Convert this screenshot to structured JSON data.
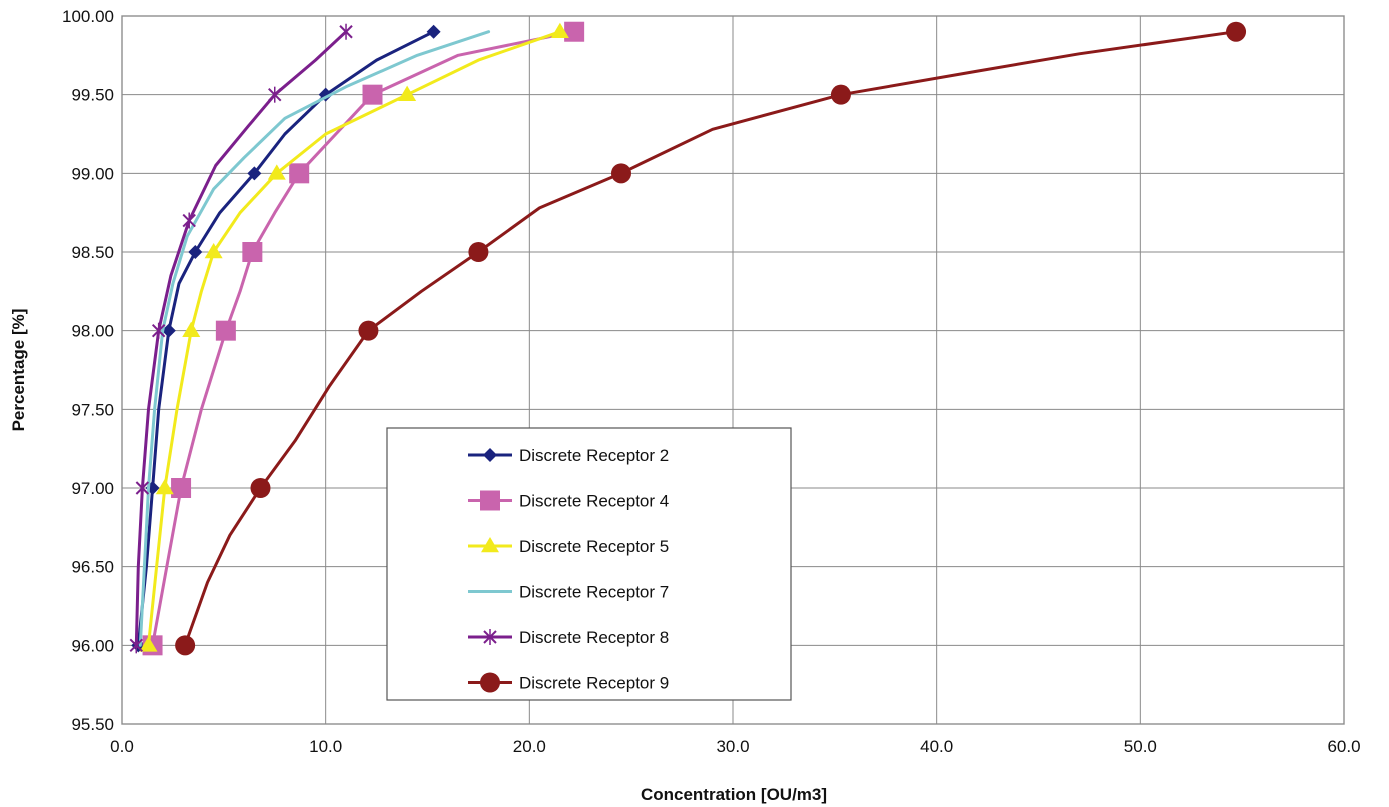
{
  "chart_data": {
    "type": "line",
    "title": "",
    "xlabel": "Concentration [OU/m3]",
    "ylabel": "Percentage [%]",
    "xlim": [
      0,
      60
    ],
    "ylim": [
      95.5,
      100
    ],
    "grid": true,
    "legend_position": "center-left",
    "x_ticks": [
      {
        "value": 0,
        "label": "0.0"
      },
      {
        "value": 10,
        "label": "10.0"
      },
      {
        "value": 20,
        "label": "20.0"
      },
      {
        "value": 30,
        "label": "30.0"
      },
      {
        "value": 40,
        "label": "40.0"
      },
      {
        "value": 50,
        "label": "50.0"
      },
      {
        "value": 60,
        "label": "60.0"
      }
    ],
    "y_ticks": [
      {
        "value": 95.5,
        "label": "95.50"
      },
      {
        "value": 96.0,
        "label": "96.00"
      },
      {
        "value": 96.5,
        "label": "96.50"
      },
      {
        "value": 97.0,
        "label": "97.00"
      },
      {
        "value": 97.5,
        "label": "97.50"
      },
      {
        "value": 98.0,
        "label": "98.00"
      },
      {
        "value": 98.5,
        "label": "98.50"
      },
      {
        "value": 99.0,
        "label": "99.00"
      },
      {
        "value": 99.5,
        "label": "99.50"
      },
      {
        "value": 100.0,
        "label": "100.00"
      }
    ],
    "series": [
      {
        "name": "Discrete Receptor 2",
        "color": "#1a237e",
        "marker": "diamond",
        "points": [
          [
            0.8,
            96.0
          ],
          [
            1.2,
            96.5
          ],
          [
            1.5,
            97.0
          ],
          [
            1.8,
            97.5
          ],
          [
            2.3,
            98.0
          ],
          [
            2.8,
            98.3
          ],
          [
            3.6,
            98.5
          ],
          [
            4.8,
            98.75
          ],
          [
            6.5,
            99.0
          ],
          [
            8.0,
            99.25
          ],
          [
            10.0,
            99.5
          ],
          [
            12.5,
            99.72
          ],
          [
            15.3,
            99.9
          ]
        ],
        "markers": [
          [
            0.8,
            96.0
          ],
          [
            1.5,
            97.0
          ],
          [
            2.3,
            98.0
          ],
          [
            3.6,
            98.5
          ],
          [
            6.5,
            99.0
          ],
          [
            10.0,
            99.5
          ],
          [
            15.3,
            99.9
          ]
        ]
      },
      {
        "name": "Discrete Receptor 4",
        "color": "#c964ad",
        "marker": "square",
        "points": [
          [
            1.5,
            96.0
          ],
          [
            2.2,
            96.5
          ],
          [
            2.9,
            97.0
          ],
          [
            3.9,
            97.5
          ],
          [
            5.1,
            98.0
          ],
          [
            5.8,
            98.25
          ],
          [
            6.4,
            98.5
          ],
          [
            7.5,
            98.75
          ],
          [
            8.7,
            99.0
          ],
          [
            10.5,
            99.25
          ],
          [
            12.3,
            99.5
          ],
          [
            16.5,
            99.75
          ],
          [
            22.2,
            99.9
          ]
        ],
        "markers": [
          [
            1.5,
            96.0
          ],
          [
            2.9,
            97.0
          ],
          [
            5.1,
            98.0
          ],
          [
            6.4,
            98.5
          ],
          [
            8.7,
            99.0
          ],
          [
            12.3,
            99.5
          ],
          [
            22.2,
            99.9
          ]
        ]
      },
      {
        "name": "Discrete Receptor 5",
        "color": "#f2ea1c",
        "marker": "triangle",
        "points": [
          [
            1.3,
            96.0
          ],
          [
            1.7,
            96.5
          ],
          [
            2.1,
            97.0
          ],
          [
            2.7,
            97.5
          ],
          [
            3.4,
            98.0
          ],
          [
            3.9,
            98.25
          ],
          [
            4.5,
            98.5
          ],
          [
            5.8,
            98.75
          ],
          [
            7.6,
            99.0
          ],
          [
            10.0,
            99.25
          ],
          [
            14.0,
            99.5
          ],
          [
            17.5,
            99.72
          ],
          [
            21.5,
            99.9
          ]
        ],
        "markers": [
          [
            1.3,
            96.0
          ],
          [
            2.1,
            97.0
          ],
          [
            3.4,
            98.0
          ],
          [
            4.5,
            98.5
          ],
          [
            7.6,
            99.0
          ],
          [
            14.0,
            99.5
          ],
          [
            21.5,
            99.9
          ]
        ]
      },
      {
        "name": "Discrete Receptor 7",
        "color": "#7ec8d0",
        "marker": "none",
        "points": [
          [
            0.9,
            96.0
          ],
          [
            1.1,
            96.5
          ],
          [
            1.3,
            97.0
          ],
          [
            1.6,
            97.5
          ],
          [
            2.0,
            98.0
          ],
          [
            2.5,
            98.3
          ],
          [
            3.2,
            98.6
          ],
          [
            4.5,
            98.9
          ],
          [
            6.0,
            99.1
          ],
          [
            8.0,
            99.35
          ],
          [
            11.0,
            99.55
          ],
          [
            14.5,
            99.75
          ],
          [
            18.0,
            99.9
          ]
        ],
        "markers": []
      },
      {
        "name": "Discrete Receptor 8",
        "color": "#7b1f8c",
        "marker": "cross",
        "points": [
          [
            0.7,
            96.0
          ],
          [
            0.8,
            96.5
          ],
          [
            1.0,
            97.0
          ],
          [
            1.3,
            97.5
          ],
          [
            1.8,
            98.0
          ],
          [
            2.4,
            98.35
          ],
          [
            3.3,
            98.7
          ],
          [
            4.6,
            99.05
          ],
          [
            6.2,
            99.3
          ],
          [
            7.5,
            99.5
          ],
          [
            9.5,
            99.72
          ],
          [
            11.0,
            99.9
          ]
        ],
        "markers": [
          [
            0.7,
            96.0
          ],
          [
            1.0,
            97.0
          ],
          [
            1.8,
            98.0
          ],
          [
            3.3,
            98.7
          ],
          [
            7.5,
            99.5
          ],
          [
            11.0,
            99.9
          ]
        ]
      },
      {
        "name": "Discrete Receptor 9",
        "color": "#8b1a1a",
        "marker": "circle",
        "points": [
          [
            3.1,
            96.0
          ],
          [
            4.2,
            96.4
          ],
          [
            5.3,
            96.7
          ],
          [
            6.8,
            97.0
          ],
          [
            8.5,
            97.3
          ],
          [
            10.2,
            97.65
          ],
          [
            12.1,
            98.0
          ],
          [
            14.7,
            98.25
          ],
          [
            17.5,
            98.5
          ],
          [
            20.5,
            98.78
          ],
          [
            24.5,
            99.0
          ],
          [
            29.0,
            99.28
          ],
          [
            35.3,
            99.5
          ],
          [
            42.0,
            99.65
          ],
          [
            47.0,
            99.76
          ],
          [
            54.7,
            99.9
          ]
        ],
        "markers": [
          [
            3.1,
            96.0
          ],
          [
            6.8,
            97.0
          ],
          [
            12.1,
            98.0
          ],
          [
            17.5,
            98.5
          ],
          [
            24.5,
            99.0
          ],
          [
            35.3,
            99.5
          ],
          [
            54.7,
            99.9
          ]
        ]
      }
    ]
  }
}
